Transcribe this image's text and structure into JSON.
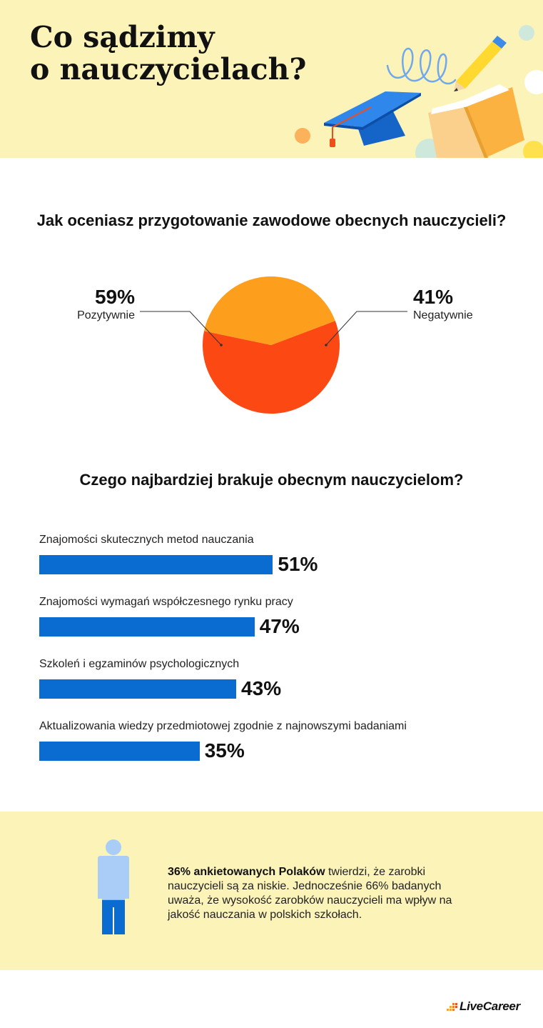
{
  "header": {
    "title_line1": "Co sądzimy",
    "title_line2": "o nauczycielach?"
  },
  "chart_data": [
    {
      "type": "pie",
      "title": "Jak oceniasz przygotowanie zawodowe obecnych nauczycieli?",
      "categories": [
        "Pozytywnie",
        "Negatywnie"
      ],
      "values": [
        59,
        41
      ],
      "labels": [
        "59%",
        "41%"
      ],
      "colors": [
        "#fc4812",
        "#fd9e1d"
      ]
    },
    {
      "type": "bar",
      "orientation": "horizontal",
      "title": "Czego najbardziej brakuje obecnym nauczycielom?",
      "categories": [
        "Znajomości skutecznych metod nauczania",
        "Znajomości wymagań współczesnego rynku pracy",
        "Szkoleń i egzaminów psychologicznych",
        "Aktualizowania wiedzy przedmiotowej zgodnie z najnowszymi badaniami"
      ],
      "values": [
        51,
        47,
        43,
        35
      ],
      "labels": [
        "51%",
        "47%",
        "43%",
        "35%"
      ],
      "color": "#0a6bd1"
    }
  ],
  "footer": {
    "bold_text": "36% ankietowanych Polaków",
    "rest_text": " twierdzi, że zarobki nauczycieli są za niskie. Jednocześnie 66% badanych uważa, że wysokość zarobków nauczycieli ma wpływ na jakość nauczania w polskich szkołach.",
    "person_fill_percent": 36,
    "person_colors": {
      "base": "#a9cdf7",
      "fill": "#0a6bd1"
    }
  },
  "brand": {
    "name": "LiveCareer",
    "icon": "livecareer-logo-icon"
  },
  "colors": {
    "background_band": "#fbf3b8",
    "bar": "#0a6bd1"
  }
}
